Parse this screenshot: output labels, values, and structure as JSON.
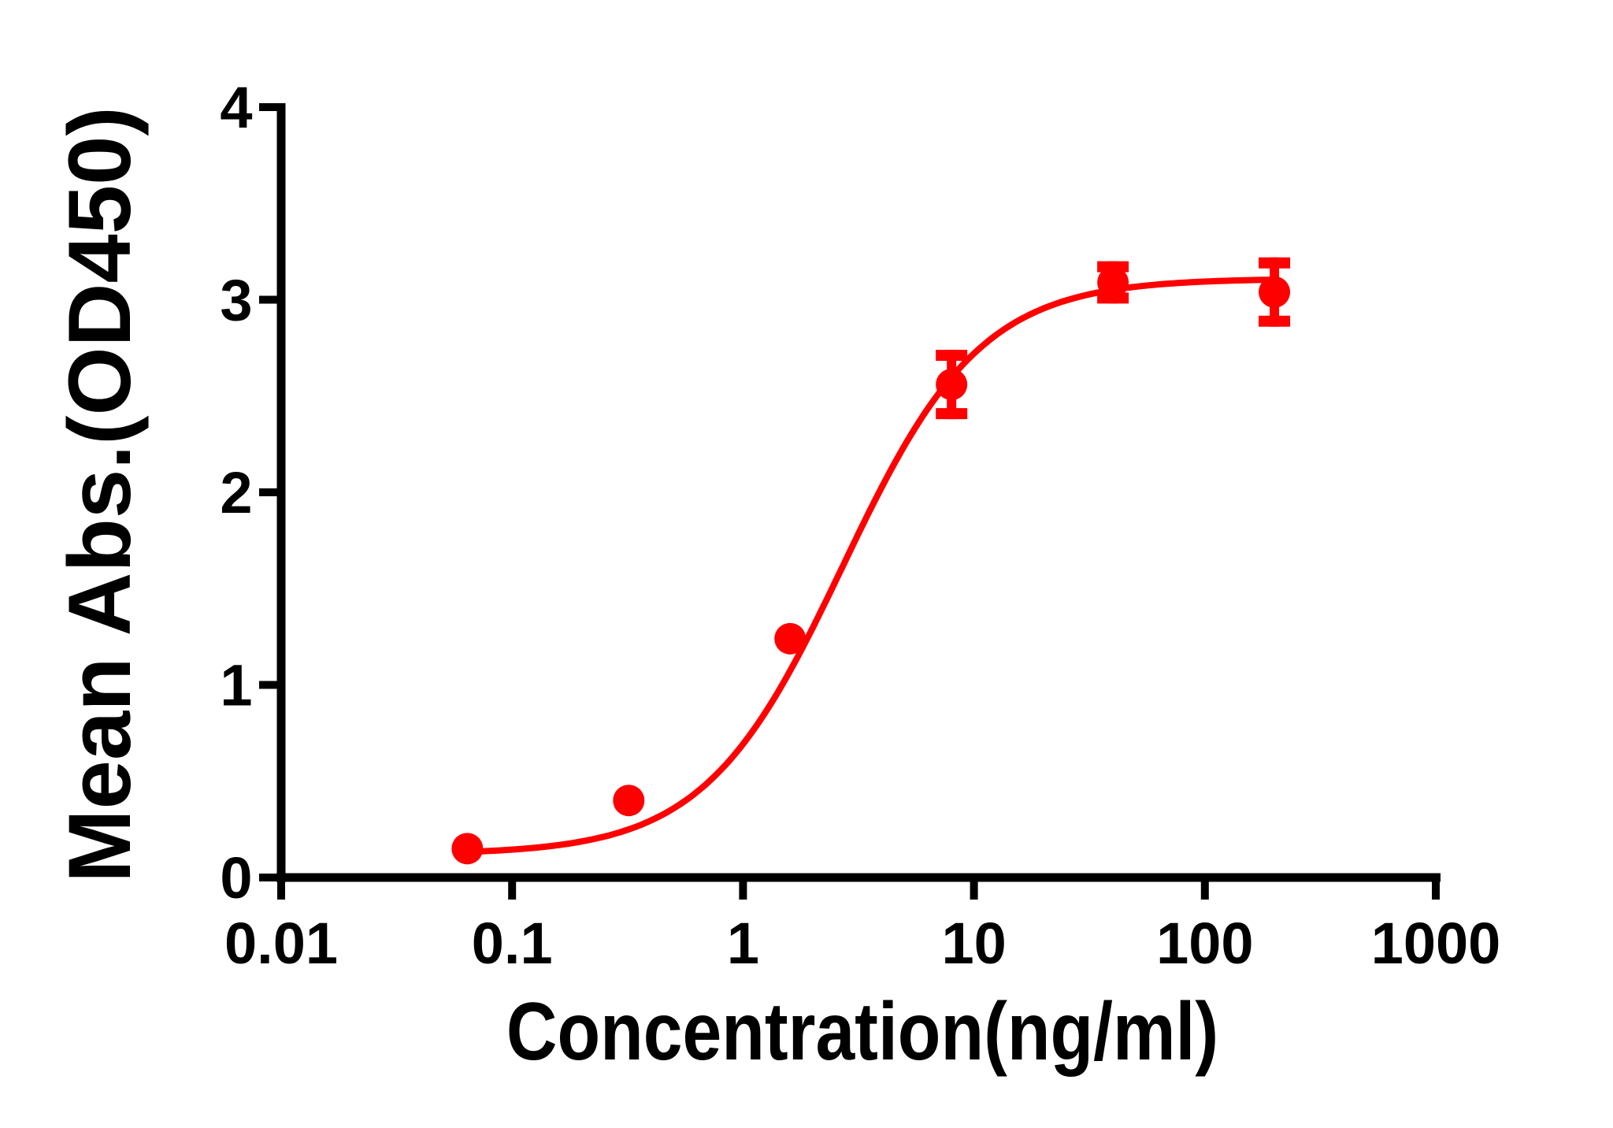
{
  "chart_data": {
    "type": "line",
    "subtype": "dose-response (4PL fit) with scatter points and error bars",
    "title": "",
    "xlabel": "Concentration(ng/ml)",
    "ylabel": "Mean Abs.(OD450)",
    "xscale": "log10",
    "xlim": [
      0.01,
      1000
    ],
    "ylim": [
      0,
      4
    ],
    "x_ticks": [
      0.01,
      0.1,
      1,
      10,
      100,
      1000
    ],
    "x_tick_labels": [
      "0.01",
      "0.1",
      "1",
      "10",
      "100",
      "1000"
    ],
    "y_ticks": [
      0,
      1,
      2,
      3,
      4
    ],
    "y_tick_labels": [
      "0",
      "1",
      "2",
      "3",
      "4"
    ],
    "grid": false,
    "legend": null,
    "series": [
      {
        "name": "Mean Abs.",
        "color": "#ff0000",
        "marker": "circle",
        "x": [
          0.064,
          0.32,
          1.6,
          8,
          40,
          200
        ],
        "values": [
          0.15,
          0.4,
          1.24,
          2.56,
          3.09,
          3.04
        ],
        "error": [
          0.0,
          0.0,
          0.0,
          0.18,
          0.11,
          0.18
        ],
        "fit": {
          "model": "4PL",
          "bottom": 0.12,
          "top": 3.11,
          "ec50": 2.7,
          "hill": 1.45,
          "x_range": [
            0.064,
            200
          ]
        }
      }
    ]
  },
  "axes": {
    "x_title": "Concentration(ng/ml)",
    "y_title": "Mean Abs.(OD450)",
    "x_tick_labels": [
      "0.01",
      "0.1",
      "1",
      "10",
      "100",
      "1000"
    ],
    "y_tick_labels": [
      "0",
      "1",
      "2",
      "3",
      "4"
    ]
  },
  "colors": {
    "series": "#ff0000",
    "axis": "#000000",
    "background": "#ffffff"
  }
}
